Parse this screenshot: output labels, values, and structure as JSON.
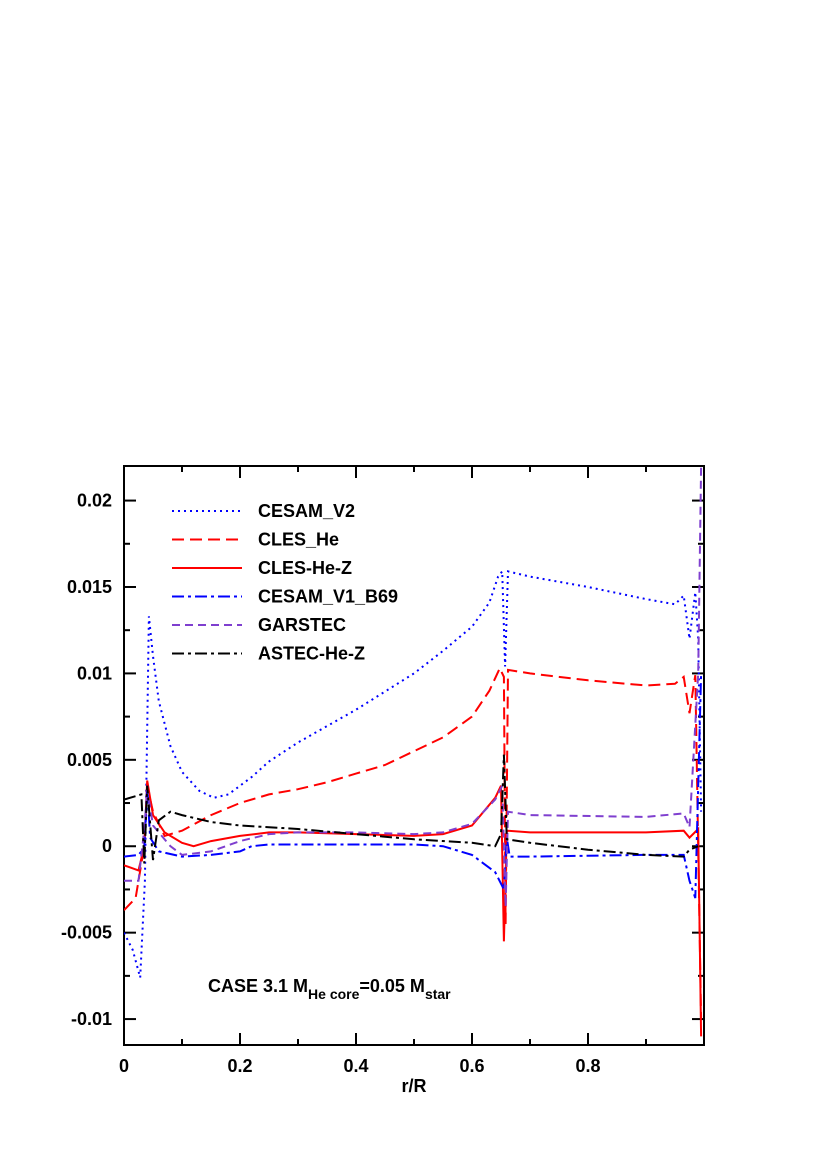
{
  "chart_data": {
    "type": "line",
    "x_label": "r/R",
    "annotation": [
      "CASE 3.1 M",
      "He core",
      "=0.05 M",
      "star"
    ],
    "xlim": [
      0,
      1
    ],
    "ylim": [
      -0.0115,
      0.022
    ],
    "xticks": [
      0,
      0.2,
      0.4,
      0.6,
      0.8
    ],
    "yticks": [
      -0.01,
      -0.005,
      0,
      0.005,
      0.01,
      0.015,
      0.02
    ],
    "xminorticks": [
      0.1,
      0.3,
      0.5,
      0.7,
      0.9
    ],
    "yminorticks": [
      -0.0075,
      -0.0025,
      0.0025,
      0.0075,
      0.0125,
      0.0175
    ],
    "legend": "upper left",
    "series": [
      {
        "name": "CESAM_V2",
        "color": "#0000ff",
        "dash": "dotted",
        "x": [
          0,
          0.015,
          0.028,
          0.036,
          0.043,
          0.05,
          0.06,
          0.08,
          0.1,
          0.13,
          0.155,
          0.18,
          0.22,
          0.25,
          0.3,
          0.4,
          0.5,
          0.55,
          0.6,
          0.63,
          0.645,
          0.652,
          0.657,
          0.662,
          0.7,
          0.8,
          0.9,
          0.95,
          0.965,
          0.975,
          0.985,
          0.99,
          0.995
        ],
        "values": [
          -0.005,
          -0.006,
          -0.0076,
          -0.002,
          0.0133,
          0.011,
          0.0084,
          0.0058,
          0.0043,
          0.0032,
          0.0028,
          0.003,
          0.004,
          0.0049,
          0.006,
          0.0079,
          0.01,
          0.0113,
          0.0127,
          0.0141,
          0.0156,
          0.0159,
          0.0104,
          0.0159,
          0.0156,
          0.015,
          0.0143,
          0.014,
          0.0145,
          0.012,
          0.0147,
          0.012,
          0.002
        ]
      },
      {
        "name": "CLES_He",
        "color": "#ff0000",
        "dash": "dashed",
        "x": [
          0,
          0.02,
          0.035,
          0.04,
          0.05,
          0.07,
          0.1,
          0.15,
          0.2,
          0.25,
          0.3,
          0.35,
          0.4,
          0.45,
          0.5,
          0.55,
          0.6,
          0.63,
          0.648,
          0.655,
          0.658,
          0.662,
          0.7,
          0.8,
          0.9,
          0.95,
          0.965,
          0.975,
          0.985,
          0.995
        ],
        "values": [
          -0.0037,
          -0.003,
          0,
          0.0035,
          0.002,
          0.0006,
          0.0009,
          0.0018,
          0.0025,
          0.003,
          0.0033,
          0.0037,
          0.0042,
          0.0047,
          0.0055,
          0.0063,
          0.0075,
          0.009,
          0.0103,
          0.0098,
          -0.0045,
          0.0102,
          0.01,
          0.0096,
          0.0093,
          0.0094,
          0.0098,
          0.0077,
          0.0099,
          -0.01
        ]
      },
      {
        "name": "CLES-He-Z",
        "color": "#ff0000",
        "dash": "solid",
        "x": [
          0,
          0.025,
          0.035,
          0.04,
          0.05,
          0.07,
          0.1,
          0.12,
          0.15,
          0.2,
          0.25,
          0.3,
          0.4,
          0.5,
          0.55,
          0.6,
          0.64,
          0.65,
          0.655,
          0.66,
          0.7,
          0.9,
          0.965,
          0.975,
          0.99,
          0.995
        ],
        "values": [
          -0.0011,
          -0.0014,
          0,
          0.0038,
          0.0018,
          0.0008,
          0.0002,
          0,
          0.0003,
          0.0006,
          0.0008,
          0.0008,
          0.0007,
          0.0006,
          0.0007,
          0.0012,
          0.0028,
          0.0035,
          -0.0055,
          0.0009,
          0.0008,
          0.0008,
          0.0009,
          0.0005,
          0.001,
          -0.011
        ]
      },
      {
        "name": "CESAM_V1_B69",
        "color": "#0000ff",
        "dash": "dashdot",
        "x": [
          0,
          0.025,
          0.035,
          0.04,
          0.045,
          0.06,
          0.1,
          0.15,
          0.2,
          0.22,
          0.25,
          0.3,
          0.4,
          0.5,
          0.55,
          0.6,
          0.64,
          0.655,
          0.66,
          0.665,
          0.7,
          0.9,
          0.965,
          0.975,
          0.985,
          0.995
        ],
        "values": [
          -0.0006,
          -0.0005,
          -0.0001,
          0.0035,
          0.0005,
          -0.0003,
          -0.0006,
          -0.0005,
          -0.0003,
          0,
          0.0001,
          0.0001,
          0.0001,
          0.0001,
          0,
          -0.0005,
          -0.0015,
          -0.0025,
          0.0005,
          -0.0006,
          -0.0006,
          -0.0005,
          -0.0005,
          -0.002,
          -0.003,
          0.01
        ]
      },
      {
        "name": "GARSTEC",
        "color": "#7f3fcf",
        "dash": "dashed2",
        "x": [
          0,
          0.025,
          0.035,
          0.04,
          0.05,
          0.08,
          0.1,
          0.15,
          0.2,
          0.25,
          0.3,
          0.4,
          0.5,
          0.55,
          0.6,
          0.64,
          0.652,
          0.658,
          0.662,
          0.7,
          0.9,
          0.965,
          0.975,
          0.99,
          0.995
        ],
        "values": [
          -0.002,
          -0.002,
          0.001,
          0.0033,
          0.0012,
          0,
          -0.0005,
          -0.0003,
          0.0003,
          0.0007,
          0.0008,
          0.0008,
          0.0007,
          0.0008,
          0.0013,
          0.0027,
          0.0035,
          -0.0035,
          0.002,
          0.0018,
          0.0017,
          0.0019,
          0.0011,
          0.01,
          0.022
        ]
      },
      {
        "name": "ASTEC-He-Z",
        "color": "#000000",
        "dash": "dashdot",
        "x": [
          0,
          0.03,
          0.035,
          0.04,
          0.05,
          0.06,
          0.08,
          0.1,
          0.15,
          0.2,
          0.25,
          0.3,
          0.4,
          0.5,
          0.6,
          0.64,
          0.65,
          0.655,
          0.66,
          0.7,
          0.8,
          0.9,
          0.965,
          0.975,
          0.99
        ],
        "values": [
          0.0027,
          0.003,
          -0.001,
          0.0035,
          -0.0008,
          0.0015,
          0.002,
          0.0018,
          0.0014,
          0.0012,
          0.0011,
          0.001,
          0.0007,
          0.0004,
          0.0002,
          0,
          0.0007,
          0.0053,
          0.0004,
          0.0002,
          -0.0002,
          -0.0005,
          -0.0006,
          -0.0002,
          0
        ]
      }
    ]
  }
}
